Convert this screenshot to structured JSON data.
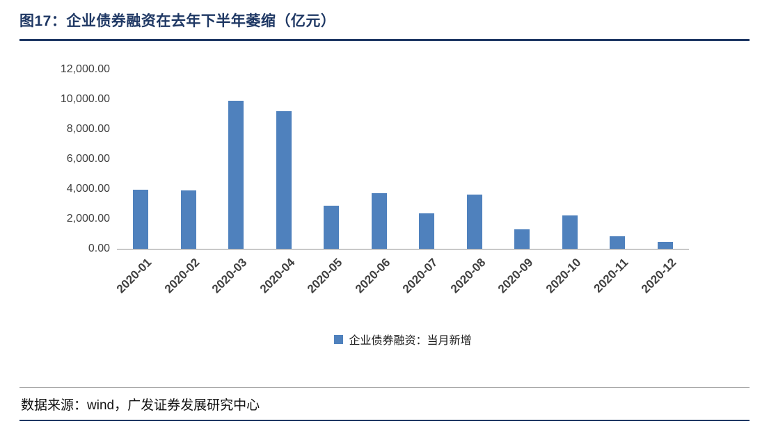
{
  "header": {
    "title": "图17：企业债券融资在去年下半年萎缩（亿元）"
  },
  "legend": {
    "label": "企业债券融资：当月新增"
  },
  "footer": {
    "source": "数据来源：wind，广发证券发展研究中心"
  },
  "colors": {
    "accent_navy": "#1F3864",
    "bar_blue": "#4F81BD",
    "axis_line_gray": "#8c8c8c",
    "label_gray": "#404040"
  },
  "chart_data": {
    "type": "bar",
    "title": "企业债券融资在去年下半年萎缩（亿元）",
    "categories": [
      "2020-01",
      "2020-02",
      "2020-03",
      "2020-04",
      "2020-05",
      "2020-06",
      "2020-07",
      "2020-08",
      "2020-09",
      "2020-10",
      "2020-11",
      "2020-12"
    ],
    "series": [
      {
        "name": "企业债券融资：当月新增",
        "values": [
          3950,
          3900,
          9900,
          9200,
          2900,
          3700,
          2350,
          3650,
          1300,
          2250,
          850,
          450
        ]
      }
    ],
    "xlabel": "",
    "ylabel": "",
    "ylim": [
      0,
      12000
    ],
    "ytick_interval": 2000,
    "ytick_labels": [
      "0.00",
      "2,000.00",
      "4,000.00",
      "6,000.00",
      "8,000.00",
      "10,000.00",
      "12,000.00"
    ],
    "grid": false,
    "legend_position": "bottom",
    "bar_color": "#4F81BD"
  }
}
